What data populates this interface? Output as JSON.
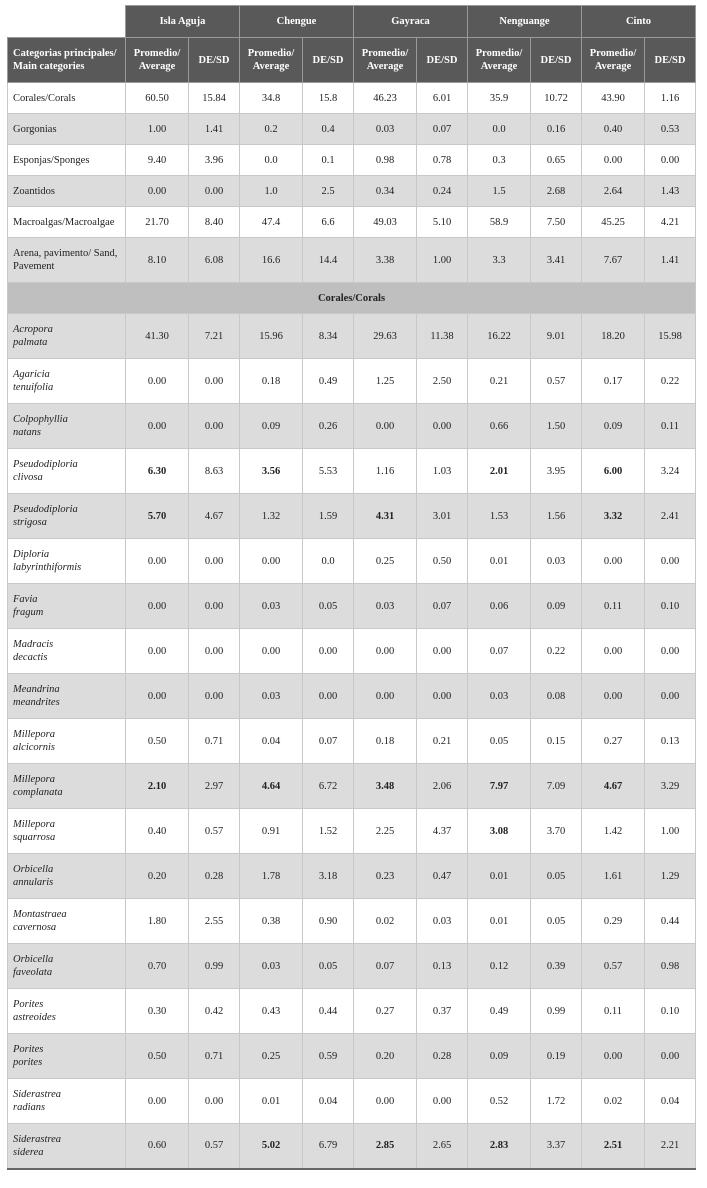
{
  "table": {
    "sites": [
      "Isla Aguja",
      "Chengue",
      "Gayraca",
      "Nenguange",
      "Cinto"
    ],
    "header": {
      "category": "Categorias principales/ Main categories",
      "average": "Promedio/ Average",
      "sd": "DE/SD"
    },
    "main_rows": [
      {
        "name": "Corales/Corals",
        "values": [
          "60.50",
          "15.84",
          "34.8",
          "15.8",
          "46.23",
          "6.01",
          "35.9",
          "10.72",
          "43.90",
          "1.16"
        ]
      },
      {
        "name": "Gorgonias",
        "values": [
          "1.00",
          "1.41",
          "0.2",
          "0.4",
          "0.03",
          "0.07",
          "0.0",
          "0.16",
          "0.40",
          "0.53"
        ]
      },
      {
        "name": "Esponjas/Sponges",
        "values": [
          "9.40",
          "3.96",
          "0.0",
          "0.1",
          "0.98",
          "0.78",
          "0.3",
          "0.65",
          "0.00",
          "0.00"
        ]
      },
      {
        "name": "Zoantidos",
        "values": [
          "0.00",
          "0.00",
          "1.0",
          "2.5",
          "0.34",
          "0.24",
          "1.5",
          "2.68",
          "2.64",
          "1.43"
        ]
      },
      {
        "name": "Macroalgas/Macroalgae",
        "values": [
          "21.70",
          "8.40",
          "47.4",
          "6.6",
          "49.03",
          "5.10",
          "58.9",
          "7.50",
          "45.25",
          "4.21"
        ]
      },
      {
        "name": "Arena, pavimento/ Sand, Pavement",
        "values": [
          "8.10",
          "6.08",
          "16.6",
          "14.4",
          "3.38",
          "1.00",
          "3.3",
          "3.41",
          "7.67",
          "1.41"
        ]
      }
    ],
    "section": "Corales/Corals",
    "species_rows": [
      {
        "name": "Acropora palmata",
        "values": [
          "41.30",
          "7.21",
          "15.96",
          "8.34",
          "29.63",
          "11.38",
          "16.22",
          "9.01",
          "18.20",
          "15.98"
        ],
        "bold": []
      },
      {
        "name": "Agaricia tenuifolia",
        "values": [
          "0.00",
          "0.00",
          "0.18",
          "0.49",
          "1.25",
          "2.50",
          "0.21",
          "0.57",
          "0.17",
          "0.22"
        ],
        "bold": []
      },
      {
        "name": "Colpophyllia natans",
        "values": [
          "0.00",
          "0.00",
          "0.09",
          "0.26",
          "0.00",
          "0.00",
          "0.66",
          "1.50",
          "0.09",
          "0.11"
        ],
        "bold": []
      },
      {
        "name": "Pseudodiploria clivosa",
        "values": [
          "6.30",
          "8.63",
          "3.56",
          "5.53",
          "1.16",
          "1.03",
          "2.01",
          "3.95",
          "6.00",
          "3.24"
        ],
        "bold": [
          0,
          2,
          6,
          8
        ]
      },
      {
        "name": "Pseudodiploria strigosa",
        "values": [
          "5.70",
          "4.67",
          "1.32",
          "1.59",
          "4.31",
          "3.01",
          "1.53",
          "1.56",
          "3.32",
          "2.41"
        ],
        "bold": [
          0,
          4,
          8
        ]
      },
      {
        "name": "Diploria labyrinthiformis",
        "values": [
          "0.00",
          "0.00",
          "0.00",
          "0.0",
          "0.25",
          "0.50",
          "0.01",
          "0.03",
          "0.00",
          "0.00"
        ],
        "bold": []
      },
      {
        "name": "Favia fragum",
        "values": [
          "0.00",
          "0.00",
          "0.03",
          "0.05",
          "0.03",
          "0.07",
          "0.06",
          "0.09",
          "0.11",
          "0.10"
        ],
        "bold": []
      },
      {
        "name": "Madracis decactis",
        "values": [
          "0.00",
          "0.00",
          "0.00",
          "0.00",
          "0.00",
          "0.00",
          "0.07",
          "0.22",
          "0.00",
          "0.00"
        ],
        "bold": []
      },
      {
        "name": "Meandrina meandrites",
        "values": [
          "0.00",
          "0.00",
          "0.03",
          "0.00",
          "0.00",
          "0.00",
          "0.03",
          "0.08",
          "0.00",
          "0.00"
        ],
        "bold": []
      },
      {
        "name": "Millepora alcicornis",
        "values": [
          "0.50",
          "0.71",
          "0.04",
          "0.07",
          "0.18",
          "0.21",
          "0.05",
          "0.15",
          "0.27",
          "0.13"
        ],
        "bold": []
      },
      {
        "name": "Millepora complanata",
        "values": [
          "2.10",
          "2.97",
          "4.64",
          "6.72",
          "3.48",
          "2.06",
          "7.97",
          "7.09",
          "4.67",
          "3.29"
        ],
        "bold": [
          0,
          2,
          4,
          6,
          8
        ]
      },
      {
        "name": "Millepora squarrosa",
        "values": [
          "0.40",
          "0.57",
          "0.91",
          "1.52",
          "2.25",
          "4.37",
          "3.08",
          "3.70",
          "1.42",
          "1.00"
        ],
        "bold": [
          6
        ]
      },
      {
        "name": "Orbicella annularis",
        "values": [
          "0.20",
          "0.28",
          "1.78",
          "3.18",
          "0.23",
          "0.47",
          "0.01",
          "0.05",
          "1.61",
          "1.29"
        ],
        "bold": []
      },
      {
        "name": "Montastraea cavernosa",
        "values": [
          "1.80",
          "2.55",
          "0.38",
          "0.90",
          "0.02",
          "0.03",
          "0.01",
          "0.05",
          "0.29",
          "0.44"
        ],
        "bold": []
      },
      {
        "name": "Orbicella faveolata",
        "values": [
          "0.70",
          "0.99",
          "0.03",
          "0.05",
          "0.07",
          "0.13",
          "0.12",
          "0.39",
          "0.57",
          "0.98"
        ],
        "bold": []
      },
      {
        "name": "Porites astreoides",
        "values": [
          "0.30",
          "0.42",
          "0.43",
          "0.44",
          "0.27",
          "0.37",
          "0.49",
          "0.99",
          "0.11",
          "0.10"
        ],
        "bold": []
      },
      {
        "name": "Porites porites",
        "values": [
          "0.50",
          "0.71",
          "0.25",
          "0.59",
          "0.20",
          "0.28",
          "0.09",
          "0.19",
          "0.00",
          "0.00"
        ],
        "bold": []
      },
      {
        "name": "Siderastrea radians",
        "values": [
          "0.00",
          "0.00",
          "0.01",
          "0.04",
          "0.00",
          "0.00",
          "0.52",
          "1.72",
          "0.02",
          "0.04"
        ],
        "bold": []
      },
      {
        "name": "Siderastrea siderea",
        "values": [
          "0.60",
          "0.57",
          "5.02",
          "6.79",
          "2.85",
          "2.65",
          "2.83",
          "3.37",
          "2.51",
          "2.21"
        ],
        "bold": [
          2,
          4,
          6,
          8
        ]
      }
    ]
  }
}
